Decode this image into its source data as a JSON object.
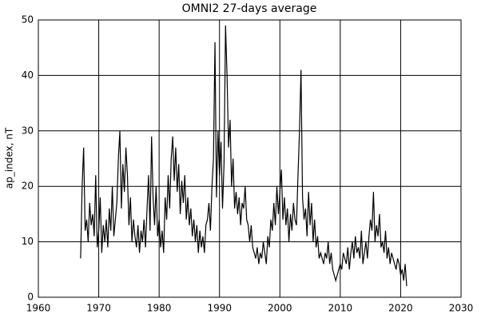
{
  "chart_data": {
    "type": "line",
    "title": "OMNI2 27-days average",
    "ylabel": "ap_index, nT",
    "xlim": [
      1960,
      2030
    ],
    "xticks": [
      1960,
      1970,
      1980,
      1990,
      2000,
      2010,
      2020,
      2030
    ],
    "ylim": [
      0,
      50
    ],
    "yticks": [
      0,
      10,
      20,
      30,
      40,
      50
    ],
    "grid": true,
    "x": [
      1967,
      1967.25,
      1967.5,
      1967.75,
      1968,
      1968.25,
      1968.5,
      1968.75,
      1969,
      1969.25,
      1969.5,
      1969.75,
      1970,
      1970.25,
      1970.5,
      1970.75,
      1971,
      1971.25,
      1971.5,
      1971.75,
      1972,
      1972.25,
      1972.5,
      1972.75,
      1973,
      1973.25,
      1973.5,
      1973.75,
      1974,
      1974.25,
      1974.5,
      1974.75,
      1975,
      1975.25,
      1975.5,
      1975.75,
      1976,
      1976.25,
      1976.5,
      1976.75,
      1977,
      1977.25,
      1977.5,
      1977.75,
      1978,
      1978.25,
      1978.5,
      1978.75,
      1979,
      1979.25,
      1979.5,
      1979.75,
      1980,
      1980.25,
      1980.5,
      1980.75,
      1981,
      1981.25,
      1981.5,
      1981.75,
      1982,
      1982.25,
      1982.5,
      1982.75,
      1983,
      1983.25,
      1983.5,
      1983.75,
      1984,
      1984.25,
      1984.5,
      1984.75,
      1985,
      1985.25,
      1985.5,
      1985.75,
      1986,
      1986.25,
      1986.5,
      1986.75,
      1987,
      1987.25,
      1987.5,
      1987.75,
      1988,
      1988.25,
      1988.5,
      1988.75,
      1989,
      1989.25,
      1989.5,
      1989.75,
      1990,
      1990.25,
      1990.5,
      1990.75,
      1991,
      1991.25,
      1991.5,
      1991.75,
      1992,
      1992.25,
      1992.5,
      1992.75,
      1993,
      1993.25,
      1993.5,
      1993.75,
      1994,
      1994.25,
      1994.5,
      1994.75,
      1995,
      1995.25,
      1995.5,
      1995.75,
      1996,
      1996.25,
      1996.5,
      1996.75,
      1997,
      1997.25,
      1997.5,
      1997.75,
      1998,
      1998.25,
      1998.5,
      1998.75,
      1999,
      1999.25,
      1999.5,
      1999.75,
      2000,
      2000.25,
      2000.5,
      2000.75,
      2001,
      2001.25,
      2001.5,
      2001.75,
      2002,
      2002.25,
      2002.5,
      2002.75,
      2003,
      2003.25,
      2003.5,
      2003.75,
      2004,
      2004.25,
      2004.5,
      2004.75,
      2005,
      2005.25,
      2005.5,
      2005.75,
      2006,
      2006.25,
      2006.5,
      2006.75,
      2007,
      2007.25,
      2007.5,
      2007.75,
      2008,
      2008.25,
      2008.5,
      2008.75,
      2009,
      2009.25,
      2009.5,
      2009.75,
      2010,
      2010.25,
      2010.5,
      2010.75,
      2011,
      2011.25,
      2011.5,
      2011.75,
      2012,
      2012.25,
      2012.5,
      2012.75,
      2013,
      2013.25,
      2013.5,
      2013.75,
      2014,
      2014.25,
      2014.5,
      2014.75,
      2015,
      2015.25,
      2015.5,
      2015.75,
      2016,
      2016.25,
      2016.5,
      2016.75,
      2017,
      2017.25,
      2017.5,
      2017.75,
      2018,
      2018.25,
      2018.5,
      2018.75,
      2019,
      2019.25,
      2019.5,
      2019.75,
      2020,
      2020.25,
      2020.5,
      2020.75,
      2021
    ],
    "series": [
      {
        "color": "#000000",
        "values": [
          7,
          20,
          27,
          12,
          14,
          10,
          17,
          13,
          15,
          11,
          22,
          9,
          12,
          18,
          8,
          13,
          10,
          14,
          9,
          16,
          12,
          20,
          11,
          14,
          17,
          25,
          30,
          16,
          24,
          19,
          27,
          22,
          13,
          18,
          10,
          14,
          11,
          9,
          13,
          8,
          12,
          10,
          14,
          9,
          16,
          22,
          12,
          29,
          18,
          13,
          20,
          11,
          14,
          9,
          12,
          8,
          18,
          14,
          22,
          16,
          25,
          29,
          21,
          27,
          19,
          24,
          15,
          21,
          17,
          22,
          14,
          18,
          13,
          16,
          11,
          14,
          10,
          13,
          8,
          12,
          9,
          11,
          8,
          13,
          14,
          17,
          12,
          20,
          25,
          46,
          18,
          30,
          22,
          28,
          16,
          24,
          49,
          40,
          27,
          32,
          20,
          25,
          16,
          19,
          15,
          18,
          13,
          17,
          16,
          20,
          14,
          13,
          10,
          13,
          9,
          8,
          7,
          9,
          6,
          8,
          7,
          10,
          8,
          6,
          11,
          9,
          14,
          12,
          17,
          13,
          20,
          15,
          19,
          23,
          14,
          18,
          13,
          16,
          10,
          15,
          12,
          17,
          14,
          13,
          22,
          30,
          41,
          18,
          14,
          16,
          11,
          19,
          13,
          17,
          10,
          14,
          9,
          11,
          7,
          8,
          7,
          6,
          8,
          7,
          10,
          6,
          8,
          5,
          4,
          3,
          4,
          5,
          6,
          5,
          8,
          7,
          6,
          9,
          5,
          8,
          10,
          7,
          11,
          8,
          9,
          7,
          12,
          6,
          8,
          10,
          7,
          11,
          14,
          12,
          19,
          10,
          13,
          11,
          15,
          9,
          10,
          8,
          12,
          7,
          9,
          6,
          8,
          7,
          6,
          5,
          7,
          6,
          4,
          5,
          3,
          6,
          2
        ]
      }
    ]
  }
}
